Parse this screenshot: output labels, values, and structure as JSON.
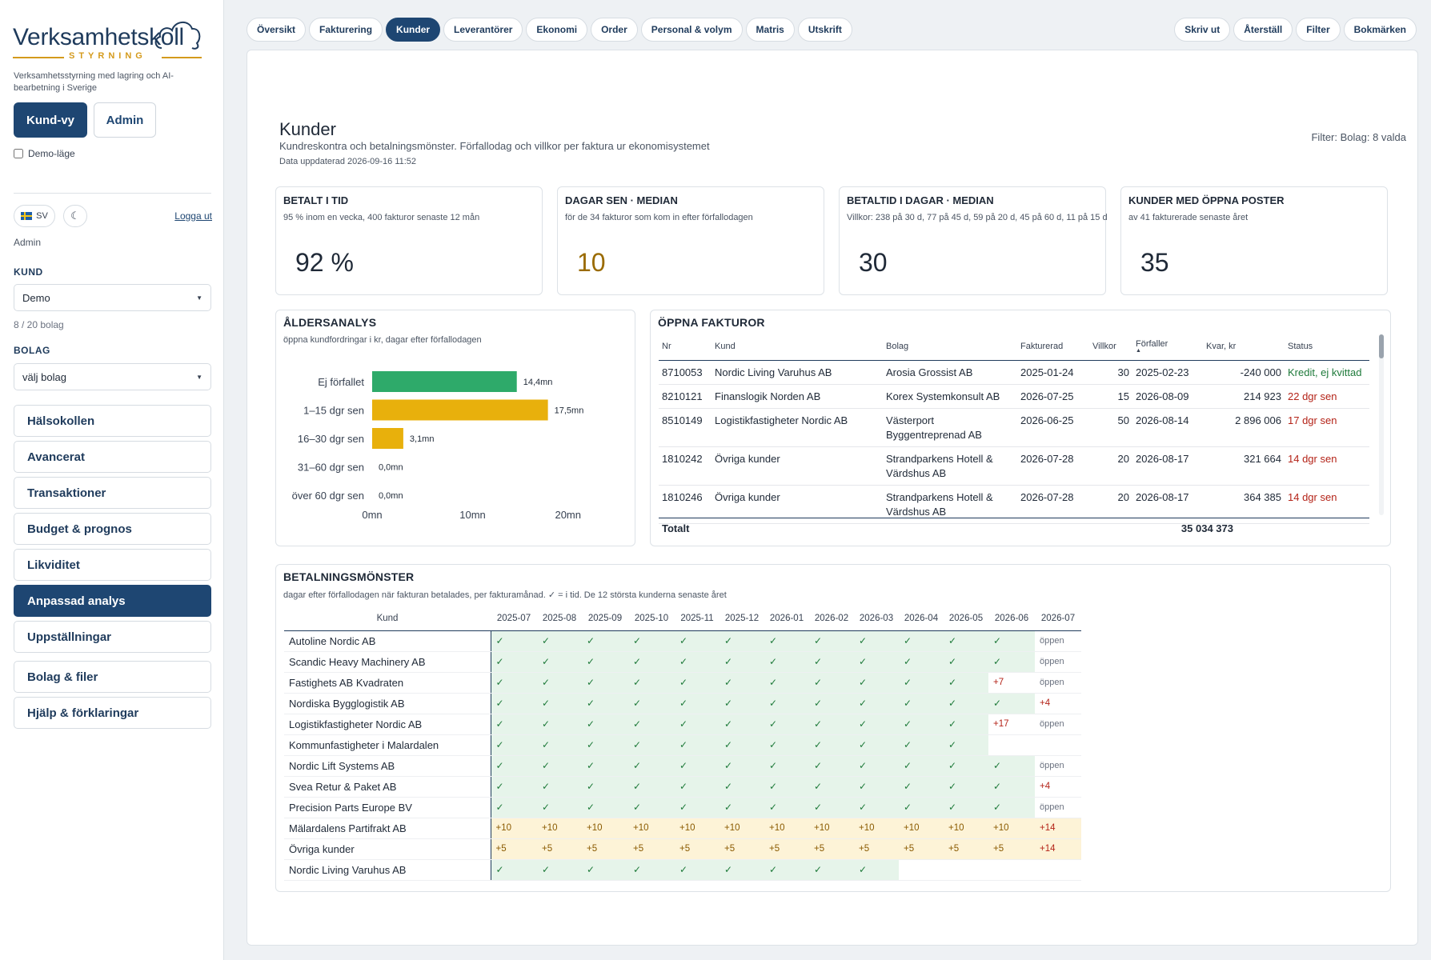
{
  "app": {
    "logo_text": "Verksamhetskoll",
    "logo_sub": "STYRNING",
    "tagline": "Verksamhetsstyrning med lagring och AI-bearbetning i Sverige",
    "view_kund": "Kund-vy",
    "view_admin": "Admin",
    "demo_label": "Demo-läge",
    "lang": "SV",
    "logout": "Logga ut",
    "role": "Admin"
  },
  "sidebar": {
    "kund_label": "KUND",
    "kund_value": "Demo",
    "bolag_count": "8 / 20 bolag",
    "bolag_label": "BOLAG",
    "bolag_value": "välj bolag",
    "nav": [
      {
        "label": "Hälsokollen",
        "active": false
      },
      {
        "label": "Avancerat",
        "active": false
      },
      {
        "label": "Transaktioner",
        "active": false
      },
      {
        "label": "Budget & prognos",
        "active": false
      },
      {
        "label": "Likviditet",
        "active": false
      },
      {
        "label": "Anpassad analys",
        "active": true
      },
      {
        "label": "Uppställningar",
        "active": false
      }
    ],
    "nav2": [
      {
        "label": "Bolag & filer"
      },
      {
        "label": "Hjälp & förklaringar"
      }
    ]
  },
  "tabs": [
    {
      "label": "Översikt",
      "active": false
    },
    {
      "label": "Fakturering",
      "active": false
    },
    {
      "label": "Kunder",
      "active": true
    },
    {
      "label": "Leverantörer",
      "active": false
    },
    {
      "label": "Ekonomi",
      "active": false
    },
    {
      "label": "Order",
      "active": false
    },
    {
      "label": "Personal & volym",
      "active": false
    },
    {
      "label": "Matris",
      "active": false
    },
    {
      "label": "Utskrift",
      "active": false
    }
  ],
  "toolbar": [
    "Skriv ut",
    "Återställ",
    "Filter",
    "Bokmärken"
  ],
  "page": {
    "title": "Kunder",
    "subtitle": "Kundreskontra och betalningsmönster. Förfallodag och villkor per faktura ur ekonomisystemet",
    "updated": "Data uppdaterad 2026-09-16 11:52",
    "filter": "Filter: Bolag: 8 valda"
  },
  "kpis": [
    {
      "title": "BETALT I TID",
      "sub": "95 % inom en vecka, 400 fakturor senaste 12 mån",
      "value": "92 %",
      "color": "#1f2937"
    },
    {
      "title": "DAGAR SEN · MEDIAN",
      "sub": "för de 34 fakturor som kom in efter förfallodagen",
      "value": "10",
      "color": "#9a6b00"
    },
    {
      "title": "BETALTID I DAGAR · MEDIAN",
      "sub": "Villkor: 238 på 30 d, 77 på 45 d, 59 på 20 d, 45 på 60 d, 11 på 15 d",
      "value": "30",
      "color": "#1f2937"
    },
    {
      "title": "KUNDER MED ÖPPNA POSTER",
      "sub": "av 41 fakturerade senaste året",
      "value": "35",
      "color": "#1f2937"
    }
  ],
  "aging": {
    "title": "ÅLDERSANALYS",
    "subtitle": "öppna kundfordringar i kr, dagar efter förfallodagen"
  },
  "chart_data": {
    "type": "bar",
    "orientation": "horizontal",
    "categories": [
      "Ej förfallet",
      "1–15 dgr sen",
      "16–30 dgr sen",
      "31–60 dgr sen",
      "över 60 dgr sen"
    ],
    "values": [
      14.4,
      17.5,
      3.1,
      0.0,
      0.0
    ],
    "value_labels": [
      "14,4mn",
      "17,5mn",
      "3,1mn",
      "0,0mn",
      "0,0mn"
    ],
    "colors": [
      "#2eaa6a",
      "#e8b00c",
      "#e8b00c",
      "#e8b00c",
      "#e8b00c"
    ],
    "xlim": [
      0,
      20
    ],
    "xticks": [
      0,
      10,
      20
    ],
    "xtick_labels": [
      "0mn",
      "10mn",
      "20mn"
    ],
    "grid": false
  },
  "invoices": {
    "title": "ÖPPNA FAKTUROR",
    "columns": [
      "Nr",
      "Kund",
      "Bolag",
      "Fakturerad",
      "Villkor",
      "Förfaller",
      "Kvar, kr",
      "Status"
    ],
    "rows": [
      {
        "nr": "8710053",
        "kund": "Nordic Living Varuhus AB",
        "bolag": "Arosia Grossist AB",
        "fakturerad": "2025-01-24",
        "villkor": "30",
        "forfaller": "2025-02-23",
        "kvar": "-240 000",
        "status": "Kredit, ej kvittad",
        "status_type": "credit"
      },
      {
        "nr": "8210121",
        "kund": "Finanslogik Norden AB",
        "bolag": "Korex Systemkonsult AB",
        "fakturerad": "2026-07-25",
        "villkor": "15",
        "forfaller": "2026-08-09",
        "kvar": "214 923",
        "status": "22 dgr sen",
        "status_type": "late"
      },
      {
        "nr": "8510149",
        "kund": "Logistikfastigheter Nordic AB",
        "bolag": "Västerport Byggentreprenad AB",
        "fakturerad": "2026-06-25",
        "villkor": "50",
        "forfaller": "2026-08-14",
        "kvar": "2 896 006",
        "status": "17 dgr sen",
        "status_type": "late"
      },
      {
        "nr": "1810242",
        "kund": "Övriga kunder",
        "bolag": "Strandparkens Hotell & Värdshus AB",
        "fakturerad": "2026-07-28",
        "villkor": "20",
        "forfaller": "2026-08-17",
        "kvar": "321 664",
        "status": "14 dgr sen",
        "status_type": "late"
      },
      {
        "nr": "1810246",
        "kund": "Övriga kunder",
        "bolag": "Strandparkens Hotell & Värdshus AB",
        "fakturerad": "2026-07-28",
        "villkor": "20",
        "forfaller": "2026-08-17",
        "kvar": "364 385",
        "status": "14 dgr sen",
        "status_type": "late"
      }
    ],
    "total_label": "Totalt",
    "total_value": "35 034 373"
  },
  "pattern": {
    "title": "BETALNINGSMÖNSTER",
    "subtitle": "dagar efter förfallodagen när fakturan betalades, per fakturamånad. ✓ = i tid. De 12 största kunderna senaste året",
    "cust_header": "Kund",
    "months": [
      "2025-07",
      "2025-08",
      "2025-09",
      "2025-10",
      "2025-11",
      "2025-12",
      "2026-01",
      "2026-02",
      "2026-03",
      "2026-04",
      "2026-05",
      "2026-06",
      "2026-07"
    ],
    "rows": [
      {
        "kund": "Autoline Nordic AB",
        "cells": [
          "✓",
          "✓",
          "✓",
          "✓",
          "✓",
          "✓",
          "✓",
          "✓",
          "✓",
          "✓",
          "✓",
          "✓",
          "öppen"
        ]
      },
      {
        "kund": "Scandic Heavy Machinery AB",
        "cells": [
          "✓",
          "✓",
          "✓",
          "✓",
          "✓",
          "✓",
          "✓",
          "✓",
          "✓",
          "✓",
          "✓",
          "✓",
          "öppen"
        ]
      },
      {
        "kund": "Fastighets AB Kvadraten",
        "cells": [
          "✓",
          "✓",
          "✓",
          "✓",
          "✓",
          "✓",
          "✓",
          "✓",
          "✓",
          "✓",
          "✓",
          "+7",
          "öppen"
        ]
      },
      {
        "kund": "Nordiska Bygglogistik AB",
        "cells": [
          "✓",
          "✓",
          "✓",
          "✓",
          "✓",
          "✓",
          "✓",
          "✓",
          "✓",
          "✓",
          "✓",
          "✓",
          "+4"
        ]
      },
      {
        "kund": "Logistikfastigheter Nordic AB",
        "cells": [
          "✓",
          "✓",
          "✓",
          "✓",
          "✓",
          "✓",
          "✓",
          "✓",
          "✓",
          "✓",
          "✓",
          "+17",
          "öppen"
        ]
      },
      {
        "kund": "Kommunfastigheter i Malardalen",
        "cells": [
          "✓",
          "✓",
          "✓",
          "✓",
          "✓",
          "✓",
          "✓",
          "✓",
          "✓",
          "✓",
          "✓",
          "",
          ""
        ]
      },
      {
        "kund": "Nordic Lift Systems AB",
        "cells": [
          "✓",
          "✓",
          "✓",
          "✓",
          "✓",
          "✓",
          "✓",
          "✓",
          "✓",
          "✓",
          "✓",
          "✓",
          "öppen"
        ]
      },
      {
        "kund": "Svea Retur & Paket AB",
        "cells": [
          "✓",
          "✓",
          "✓",
          "✓",
          "✓",
          "✓",
          "✓",
          "✓",
          "✓",
          "✓",
          "✓",
          "✓",
          "+4"
        ]
      },
      {
        "kund": "Precision Parts Europe BV",
        "cells": [
          "✓",
          "✓",
          "✓",
          "✓",
          "✓",
          "✓",
          "✓",
          "✓",
          "✓",
          "✓",
          "✓",
          "✓",
          "öppen"
        ]
      },
      {
        "kund": "Mälardalens Partifrakt AB",
        "cells": [
          "+10",
          "+10",
          "+10",
          "+10",
          "+10",
          "+10",
          "+10",
          "+10",
          "+10",
          "+10",
          "+10",
          "+10",
          "+14"
        ]
      },
      {
        "kund": "Övriga kunder",
        "cells": [
          "+5",
          "+5",
          "+5",
          "+5",
          "+5",
          "+5",
          "+5",
          "+5",
          "+5",
          "+5",
          "+5",
          "+5",
          "+14"
        ]
      },
      {
        "kund": "Nordic Living Varuhus AB",
        "cells": [
          "✓",
          "✓",
          "✓",
          "✓",
          "✓",
          "✓",
          "✓",
          "✓",
          "✓",
          "",
          "",
          "",
          ""
        ]
      }
    ]
  }
}
